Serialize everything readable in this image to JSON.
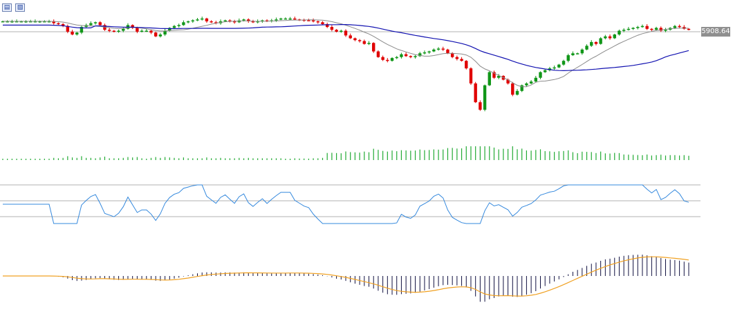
{
  "toolbar": {
    "icons": [
      "bars-chart-icon",
      "candle-chart-icon"
    ]
  },
  "price_label": "5908.64",
  "colors": {
    "up": "#109618",
    "down": "#e00000",
    "ma_fast": "#8a8a8a",
    "ma_slow": "#1010b0",
    "rsi": "#3388dd",
    "volume": "#22aa33",
    "macd_hist": "#101040",
    "macd_signal": "#f0a020",
    "grid": "#b0b0b0"
  },
  "chart_data": [
    {
      "type": "candlestick",
      "title": "",
      "price_level": 5908.64,
      "ylim": [
        5330,
        5990
      ],
      "closes": [
        5950,
        5950,
        5950,
        5950,
        5950,
        5950,
        5950,
        5950,
        5950,
        5950,
        5950,
        5940,
        5935,
        5925,
        5895,
        5880,
        5890,
        5920,
        5930,
        5940,
        5945,
        5930,
        5905,
        5900,
        5895,
        5900,
        5910,
        5930,
        5915,
        5895,
        5900,
        5900,
        5890,
        5870,
        5880,
        5900,
        5915,
        5925,
        5930,
        5945,
        5950,
        5955,
        5960,
        5965,
        5950,
        5945,
        5940,
        5950,
        5955,
        5950,
        5945,
        5955,
        5960,
        5950,
        5945,
        5950,
        5955,
        5950,
        5955,
        5960,
        5965,
        5965,
        5965,
        5960,
        5958,
        5956,
        5955,
        5950,
        5945,
        5935,
        5920,
        5905,
        5895,
        5900,
        5875,
        5860,
        5850,
        5845,
        5830,
        5835,
        5790,
        5760,
        5745,
        5740,
        5755,
        5760,
        5775,
        5765,
        5760,
        5765,
        5780,
        5785,
        5790,
        5800,
        5805,
        5800,
        5780,
        5760,
        5750,
        5740,
        5700,
        5620,
        5520,
        5480,
        5610,
        5680,
        5650,
        5660,
        5640,
        5620,
        5560,
        5580,
        5610,
        5620,
        5630,
        5650,
        5680,
        5690,
        5700,
        5705,
        5720,
        5740,
        5770,
        5780,
        5780,
        5800,
        5820,
        5840,
        5830,
        5860,
        5870,
        5860,
        5880,
        5900,
        5905,
        5910,
        5915,
        5920,
        5925,
        5910,
        5905,
        5915,
        5900,
        5905,
        5915,
        5925,
        5920,
        5910,
        5908
      ],
      "ma_fast_visible": true,
      "ma_slow_visible": true
    },
    {
      "type": "bar",
      "title": "",
      "series": [
        {
          "values_profile": "low-flat-then-rising-peak-then-declining"
        }
      ]
    },
    {
      "type": "line",
      "title": "",
      "levels": [
        70,
        50,
        30
      ],
      "ylim": [
        0,
        100
      ]
    },
    {
      "type": "bar",
      "title": "",
      "has_signal_line": true
    }
  ]
}
